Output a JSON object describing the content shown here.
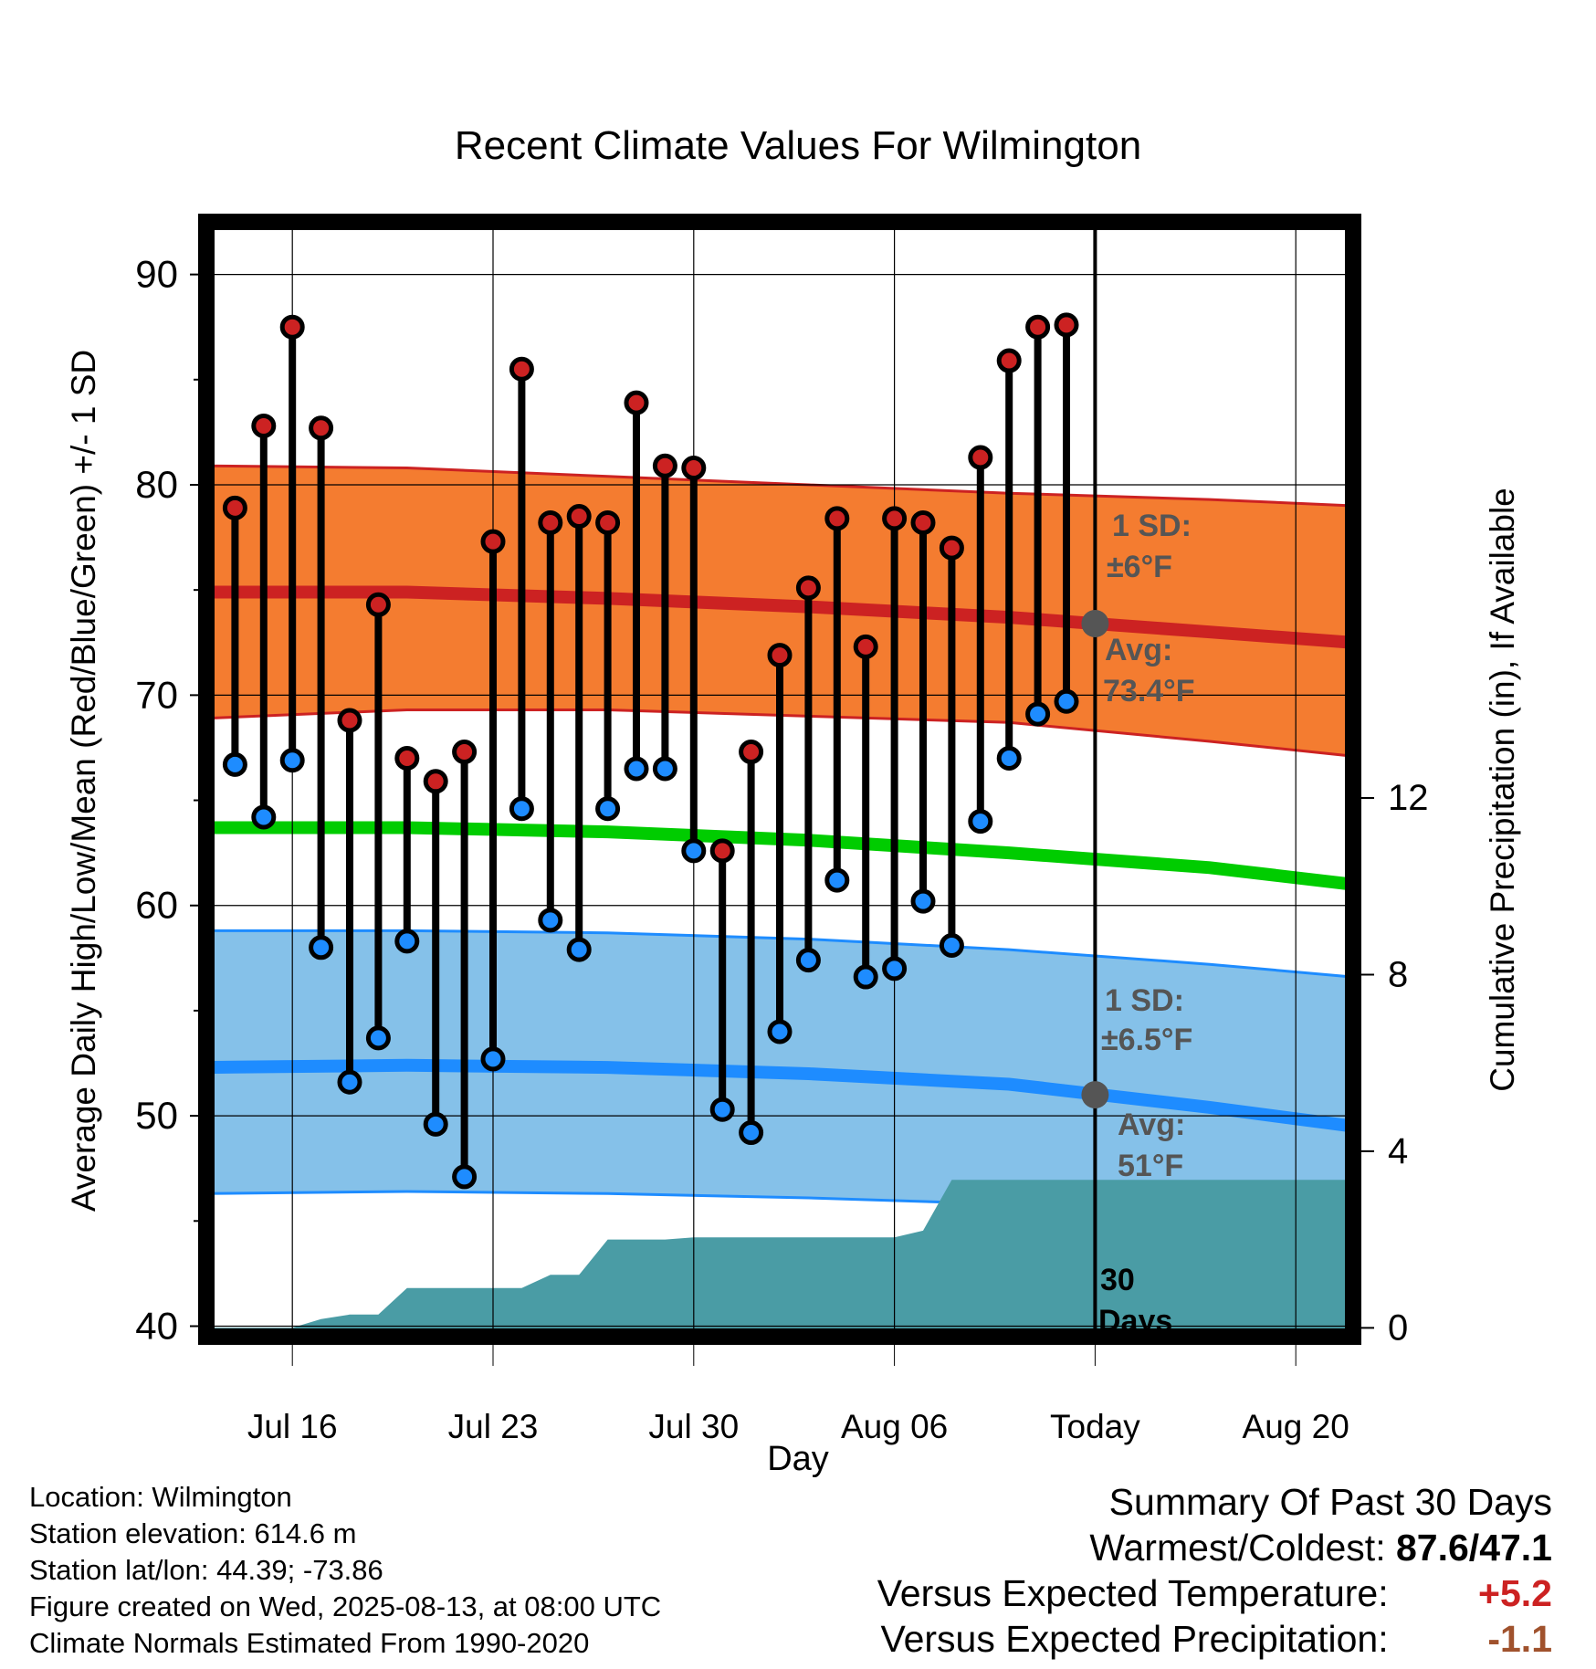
{
  "colors": {
    "high": "#cc2222",
    "high_band": "#f47c30",
    "low": "#1e8cff",
    "low_band": "#85c1e9",
    "mean": "#00cc00",
    "precip": "#4a9ca5",
    "annotation": "#555555",
    "warm_anomaly": "#cc2222",
    "dry_anomaly": "#a0522d"
  },
  "chart_data": {
    "type": "line",
    "title": "Recent Climate Values For Wilmington",
    "xlabel": "Day",
    "ylabel": "Average Daily High/Low/Mean (Red/Blue/Green) +/- 1 SD",
    "y2label": "Cumulative Precipitation (in), If Available",
    "xlim": [
      "2025-07-13",
      "2025-08-22"
    ],
    "ylim": [
      39.5,
      92.5
    ],
    "y2lim": [
      -0.2,
      25.05
    ],
    "x_ticks": [
      {
        "date": "2025-07-16",
        "label": "Jul 16"
      },
      {
        "date": "2025-07-23",
        "label": "Jul 23"
      },
      {
        "date": "2025-07-30",
        "label": "Jul 30"
      },
      {
        "date": "2025-08-06",
        "label": "Aug 06"
      },
      {
        "date": "2025-08-13",
        "label": "Today"
      },
      {
        "date": "2025-08-20",
        "label": "Aug 20"
      }
    ],
    "y_ticks": [
      40,
      50,
      60,
      70,
      80,
      90
    ],
    "y2_ticks": [
      0,
      4,
      8,
      12
    ],
    "grid": true,
    "today": "2025-08-13",
    "observations": [
      {
        "date": "2025-07-14",
        "high": 78.9,
        "low": 66.7
      },
      {
        "date": "2025-07-15",
        "high": 82.8,
        "low": 64.2
      },
      {
        "date": "2025-07-16",
        "high": 87.5,
        "low": 66.9
      },
      {
        "date": "2025-07-17",
        "high": 82.7,
        "low": 58.0
      },
      {
        "date": "2025-07-18",
        "high": 68.8,
        "low": 51.6
      },
      {
        "date": "2025-07-19",
        "high": 74.3,
        "low": 53.7
      },
      {
        "date": "2025-07-20",
        "high": 67.0,
        "low": 58.3
      },
      {
        "date": "2025-07-21",
        "high": 65.9,
        "low": 49.6
      },
      {
        "date": "2025-07-22",
        "high": 67.3,
        "low": 47.1
      },
      {
        "date": "2025-07-23",
        "high": 77.3,
        "low": 52.7
      },
      {
        "date": "2025-07-24",
        "high": 85.5,
        "low": 64.6
      },
      {
        "date": "2025-07-25",
        "high": 78.2,
        "low": 59.3
      },
      {
        "date": "2025-07-26",
        "high": 78.5,
        "low": 57.9
      },
      {
        "date": "2025-07-27",
        "high": 78.2,
        "low": 64.6
      },
      {
        "date": "2025-07-28",
        "high": 83.9,
        "low": 66.5
      },
      {
        "date": "2025-07-29",
        "high": 80.9,
        "low": 66.5
      },
      {
        "date": "2025-07-30",
        "high": 80.8,
        "low": 62.6
      },
      {
        "date": "2025-07-31",
        "high": 62.6,
        "low": 50.3
      },
      {
        "date": "2025-08-01",
        "high": 67.3,
        "low": 49.2
      },
      {
        "date": "2025-08-02",
        "high": 71.9,
        "low": 54.0
      },
      {
        "date": "2025-08-03",
        "high": 75.1,
        "low": 57.4
      },
      {
        "date": "2025-08-04",
        "high": 78.4,
        "low": 61.2
      },
      {
        "date": "2025-08-05",
        "high": 72.3,
        "low": 56.6
      },
      {
        "date": "2025-08-06",
        "high": 78.4,
        "low": 57.0
      },
      {
        "date": "2025-08-07",
        "high": 78.2,
        "low": 60.2
      },
      {
        "date": "2025-08-08",
        "high": 77.0,
        "low": 58.1
      },
      {
        "date": "2025-08-09",
        "high": 81.3,
        "low": 64.0
      },
      {
        "date": "2025-08-10",
        "high": 85.9,
        "low": 67.0
      },
      {
        "date": "2025-08-11",
        "high": 87.5,
        "low": 69.1
      },
      {
        "date": "2025-08-12",
        "high": 87.6,
        "low": 69.7
      }
    ],
    "normals": {
      "x": [
        "2025-07-13",
        "2025-07-20",
        "2025-07-27",
        "2025-08-03",
        "2025-08-10",
        "2025-08-17",
        "2025-08-22"
      ],
      "high_mean": [
        74.9,
        74.9,
        74.6,
        74.2,
        73.7,
        73.0,
        72.5
      ],
      "high_upper": [
        80.9,
        80.8,
        80.4,
        80.0,
        79.6,
        79.3,
        79.0
      ],
      "high_lower": [
        68.9,
        69.3,
        69.3,
        69.0,
        68.7,
        67.8,
        67.1
      ],
      "mean": [
        63.7,
        63.7,
        63.5,
        63.1,
        62.5,
        61.8,
        61.0
      ],
      "low_mean": [
        52.3,
        52.4,
        52.3,
        52.0,
        51.5,
        50.4,
        49.5
      ],
      "low_upper": [
        58.8,
        58.8,
        58.7,
        58.4,
        57.9,
        57.2,
        56.6
      ],
      "low_lower": [
        46.3,
        46.4,
        46.3,
        46.1,
        45.8,
        45.7,
        45.7
      ]
    },
    "precipitation_cumulative": {
      "x": [
        "2025-07-13",
        "2025-07-14",
        "2025-07-15",
        "2025-07-16",
        "2025-07-17",
        "2025-07-18",
        "2025-07-19",
        "2025-07-20",
        "2025-07-21",
        "2025-07-22",
        "2025-07-23",
        "2025-07-24",
        "2025-07-25",
        "2025-07-26",
        "2025-07-27",
        "2025-07-28",
        "2025-07-29",
        "2025-07-30",
        "2025-07-31",
        "2025-08-01",
        "2025-08-02",
        "2025-08-03",
        "2025-08-04",
        "2025-08-05",
        "2025-08-06",
        "2025-08-07",
        "2025-08-08",
        "2025-08-09",
        "2025-08-10",
        "2025-08-11",
        "2025-08-12",
        "2025-08-22"
      ],
      "values": [
        0,
        0,
        0,
        0,
        0.2,
        0.3,
        0.3,
        0.9,
        0.9,
        0.9,
        0.9,
        0.9,
        1.2,
        1.2,
        2.0,
        2.0,
        2.0,
        2.05,
        2.05,
        2.05,
        2.05,
        2.05,
        2.05,
        2.05,
        2.05,
        2.2,
        3.35,
        3.35,
        3.35,
        3.35,
        3.35,
        3.35
      ]
    },
    "annotations": {
      "high_sd": {
        "line1": "1 SD:",
        "line2": "±6°F"
      },
      "high_avg": {
        "line1": "Avg:",
        "line2": "73.4°F",
        "value": 73.4
      },
      "low_sd": {
        "line1": "1 SD:",
        "line2": "±6.5°F"
      },
      "low_avg": {
        "line1": "Avg:",
        "line2": "51°F",
        "value": 51
      },
      "period": {
        "line1": "30",
        "line2": "Days"
      }
    }
  },
  "info": {
    "location": "Location: Wilmington",
    "elevation": "Station elevation: 614.6 m",
    "latlon": "Station lat/lon: 44.39; -73.86",
    "created": "Figure created on Wed, 2025-08-13, at 08:00 UTC",
    "normals": "Climate Normals Estimated From 1990-2020"
  },
  "summary": {
    "heading": "Summary Of Past 30 Days",
    "warm_cold_label": "Warmest/Coldest:",
    "warm_cold_value": "87.6/47.1",
    "temp_label": "Versus Expected Temperature:",
    "temp_value": "+5.2",
    "precip_label": "Versus Expected Precipitation:",
    "precip_value": "-1.1"
  }
}
